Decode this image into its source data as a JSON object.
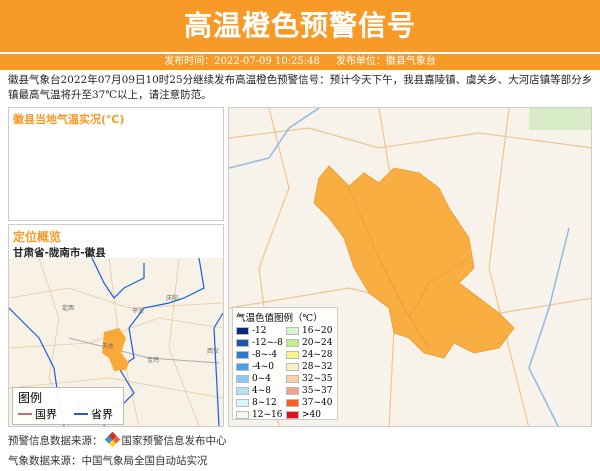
{
  "header": {
    "title": "高温橙色预警信号",
    "publish_time": "发布时间：2022-07-09 10:25:48",
    "publish_unit": "发布单位：徽县气象台"
  },
  "description": "徽县气象台2022年07月09日10时25分继续发布高温橙色预警信号：预计今天下午，我县嘉陵镇、虞关乡、大河店镇等部分乡镇最高气温将升至37℃以上，请注意防范。",
  "temp_panel": {
    "title": "徽县当地气温实况(℃)"
  },
  "location_panel": {
    "title": "定位概览",
    "path": "甘肃省-陇南市-徽县",
    "map_labels": [
      "定西",
      "平凉",
      "庆阳",
      "天水",
      "宝鸡",
      "西安",
      "陇南"
    ],
    "legend": {
      "title": "图例",
      "national": "国界",
      "provincial": "省界",
      "national_color": "#c96a7a",
      "provincial_color": "#1a5de0"
    }
  },
  "temp_legend": {
    "title": "气温色值图例（℃）",
    "items": [
      {
        "label": "-12",
        "color": "#0a2a7a"
      },
      {
        "label": "16~20",
        "color": "#d6f5d0"
      },
      {
        "label": "-12~-8",
        "color": "#1f56a8"
      },
      {
        "label": "20~24",
        "color": "#c4ee8a"
      },
      {
        "label": "-8~-4",
        "color": "#2f78d0"
      },
      {
        "label": "24~28",
        "color": "#fbf68a"
      },
      {
        "label": "-4~0",
        "color": "#4aa0e8"
      },
      {
        "label": "28~32",
        "color": "#fdf0c8"
      },
      {
        "label": "0~4",
        "color": "#86ccf5"
      },
      {
        "label": "32~35",
        "color": "#fbd0a8"
      },
      {
        "label": "4~8",
        "color": "#b2e2f5"
      },
      {
        "label": "35~37",
        "color": "#f7a090"
      },
      {
        "label": "8~12",
        "color": "#d8f6fb"
      },
      {
        "label": "37~40",
        "color": "#fa6020"
      },
      {
        "label": "12~16",
        "color": "#f0fbee"
      },
      {
        "label": ">40",
        "color": "#e0101a"
      }
    ]
  },
  "warning_color": "#f89a28",
  "footer": {
    "warning_source": "预警信息数据来源：",
    "warning_source_name": "国家预警信息发布中心",
    "weather_source": "气象数据来源：中国气象局全国自动站实况"
  }
}
